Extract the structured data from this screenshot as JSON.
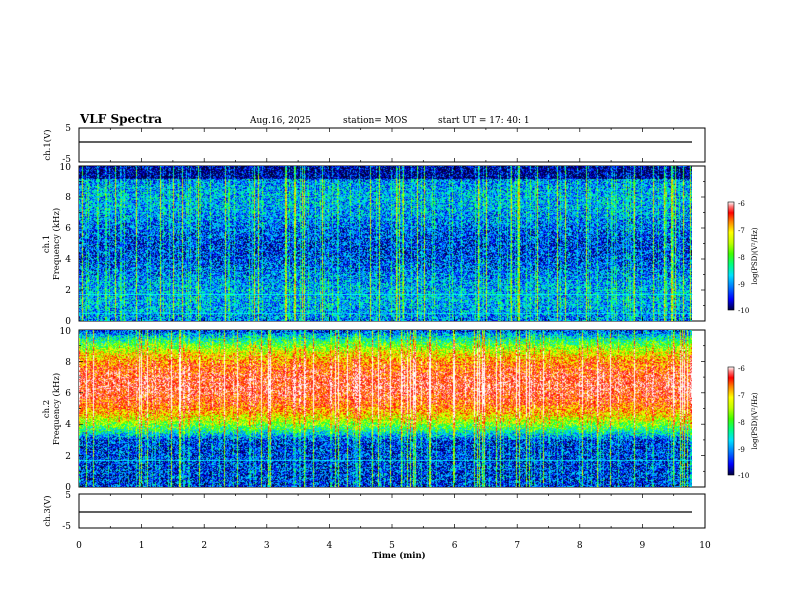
{
  "header": {
    "title": "VLF Spectra",
    "date": "Aug.16, 2025",
    "station": "station= MOS",
    "start": "start  UT =    17: 40: 1"
  },
  "chart_data": [
    {
      "type": "line",
      "panel": "ch1-waveform",
      "ylabel": "ch.1(V)",
      "ylim": [
        -5,
        5
      ],
      "yticks": [
        "5",
        "-5"
      ],
      "note": "flat trace near -0.8 V across full time range"
    },
    {
      "type": "heatmap",
      "panel": "ch1-spectrogram",
      "ylabel": "ch.1\nFrequency (kHz)",
      "ylim": [
        0,
        10
      ],
      "yticks": [
        "0",
        "2",
        "4",
        "6",
        "8",
        "10"
      ],
      "colorbar": {
        "label": "log(PSD)(V²/Hz)",
        "range": [
          -10,
          -6
        ],
        "ticks": [
          "-6",
          "-7",
          "-8",
          "-9",
          "-10"
        ]
      },
      "horizontal_lines_khz": [
        1.7,
        0.5
      ]
    },
    {
      "type": "heatmap",
      "panel": "ch2-spectrogram",
      "ylabel": "ch.2\nFrequency (kHz)",
      "ylim": [
        0,
        10
      ],
      "yticks": [
        "0",
        "2",
        "4",
        "6",
        "8",
        "10"
      ],
      "colorbar": {
        "label": "log(PSD)(V²/Hz)",
        "range": [
          -10,
          -6
        ],
        "ticks": [
          "-6",
          "-7",
          "-8",
          "-9",
          "-10"
        ]
      },
      "band_center_khz": 6.5,
      "horizontal_lines_khz": [
        1.7
      ]
    },
    {
      "type": "line",
      "panel": "ch3-waveform",
      "ylabel": "ch.3(V)",
      "ylim": [
        -5,
        5
      ],
      "yticks": [
        "5",
        "-5"
      ],
      "note": "flat trace near -0.8 V across full time range"
    }
  ],
  "x_axis": {
    "label": "Time  (min)",
    "range": [
      0,
      10
    ],
    "ticks": [
      "0",
      "1",
      "2",
      "3",
      "4",
      "5",
      "6",
      "7",
      "8",
      "9",
      "10"
    ],
    "data_end_min": 9.8
  },
  "colors": {
    "ramp": [
      "#000040",
      "#0000ff",
      "#0080ff",
      "#00e0ff",
      "#00ff80",
      "#40ff00",
      "#c0ff00",
      "#ffff00",
      "#ff8000",
      "#ff0000",
      "#ff8080",
      "#ffffff"
    ],
    "line": "#000000",
    "overlay_line": "#00ffff"
  }
}
